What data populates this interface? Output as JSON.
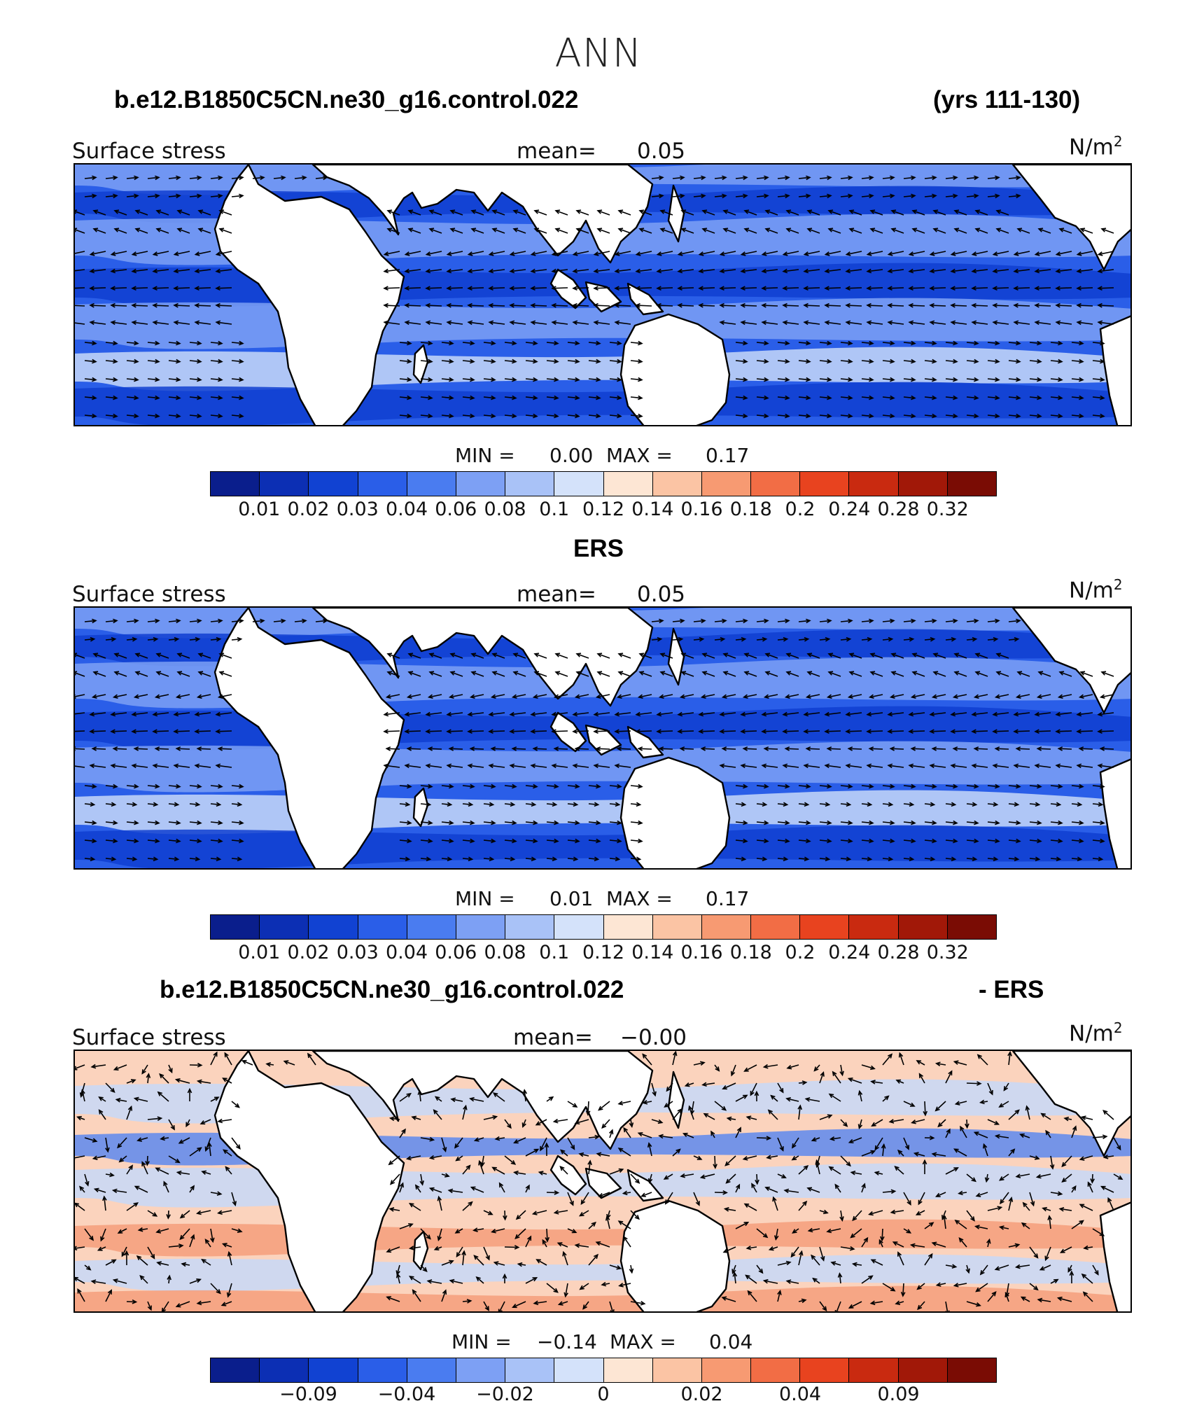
{
  "title": "ANN",
  "panels": [
    {
      "left_title": "b.e12.B1850C5CN.ne30_g16.control.022",
      "right_title": "(yrs 111-130)",
      "variable": "Surface stress",
      "mean_label": "mean=",
      "mean_value": "0.05",
      "units": "N/m",
      "units_sup": "2",
      "min_label": "MIN =",
      "min_value": "0.00",
      "max_label": "MAX =",
      "max_value": "0.17",
      "colorbar_ticks": [
        "0.01",
        "0.02",
        "0.03",
        "0.04",
        "0.06",
        "0.08",
        "0.1",
        "0.12",
        "0.14",
        "0.16",
        "0.18",
        "0.2",
        "0.24",
        "0.28",
        "0.32"
      ]
    },
    {
      "center_title": "ERS",
      "variable": "Surface stress",
      "mean_label": "mean=",
      "mean_value": "0.05",
      "units": "N/m",
      "units_sup": "2",
      "min_label": "MIN =",
      "min_value": "0.01",
      "max_label": "MAX =",
      "max_value": "0.17",
      "colorbar_ticks": [
        "0.01",
        "0.02",
        "0.03",
        "0.04",
        "0.06",
        "0.08",
        "0.1",
        "0.12",
        "0.14",
        "0.16",
        "0.18",
        "0.2",
        "0.24",
        "0.28",
        "0.32"
      ]
    },
    {
      "left_title": "b.e12.B1850C5CN.ne30_g16.control.022",
      "right_title": "- ERS",
      "variable": "Surface stress",
      "mean_label": "mean=",
      "mean_value": "−0.00",
      "units": "N/m",
      "units_sup": "2",
      "min_label": "MIN =",
      "min_value": "−0.14",
      "max_label": "MAX =",
      "max_value": "0.04",
      "colorbar_ticks": [
        "−0.09",
        "−0.04",
        "−0.02",
        "0",
        "0.02",
        "0.04",
        "0.09"
      ]
    }
  ],
  "colorbar_colors": [
    "#0a1e8c",
    "#0c2fb4",
    "#1142d2",
    "#2a5ee8",
    "#4a7cf0",
    "#7da0f4",
    "#a9c2f7",
    "#d4e2fa",
    "#fde6d4",
    "#fbc4a4",
    "#f79a72",
    "#f26d45",
    "#e8431f",
    "#c92a10",
    "#a11808",
    "#7a0c04"
  ],
  "map_colors": {
    "land": "#ffffff",
    "coast": "#000000",
    "ocean_strong": "#0f3ed0",
    "ocean_mid": "#2a5ee8",
    "ocean_light": "#7da0f4",
    "ocean_pale": "#c7d8f8",
    "diff_warm": "#fbd3bd",
    "diff_warmer": "#f59e7b",
    "diff_cool": "#c7d8f8",
    "diff_cooler": "#5d88ee"
  }
}
